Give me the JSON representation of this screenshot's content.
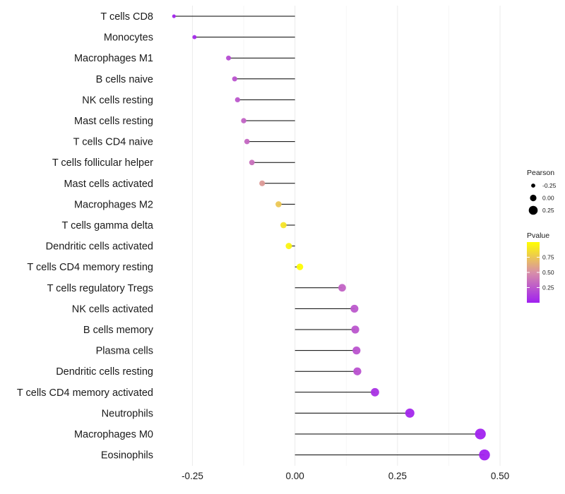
{
  "chart_data": {
    "type": "lollipop",
    "categories": [
      "T cells CD8",
      "Monocytes",
      "Macrophages M1",
      "B cells naive",
      "NK cells resting",
      "Mast cells resting",
      "T cells CD4 naive",
      "T cells follicular helper",
      "Mast cells activated",
      "Macrophages M2",
      "T cells gamma delta",
      "Dendritic cells activated",
      "T cells CD4 memory resting",
      "T cells regulatory  Tregs ",
      "NK cells activated",
      "B cells memory",
      "Plasma cells",
      "Dendritic cells resting",
      "T cells CD4 memory activated",
      "Neutrophils",
      "Macrophages M0",
      "Eosinophils"
    ],
    "values": [
      -0.295,
      -0.245,
      -0.162,
      -0.147,
      -0.14,
      -0.125,
      -0.117,
      -0.105,
      -0.08,
      -0.04,
      -0.028,
      -0.015,
      0.012,
      0.115,
      0.145,
      0.147,
      0.15,
      0.152,
      0.195,
      0.28,
      0.452,
      0.462
    ],
    "pvalues": [
      0.02,
      0.04,
      0.2,
      0.23,
      0.25,
      0.3,
      0.32,
      0.36,
      0.55,
      0.75,
      0.88,
      0.95,
      0.99,
      0.3,
      0.25,
      0.24,
      0.23,
      0.22,
      0.08,
      0.03,
      0.01,
      0.005
    ],
    "xlim": [
      -0.33,
      0.555
    ],
    "xticks": [
      "-0.25",
      "0.00",
      "0.25",
      "0.50"
    ],
    "xtick_values": [
      -0.25,
      0,
      0.25,
      0.5
    ],
    "title": "",
    "xlabel": "",
    "ylabel": "",
    "grid": true,
    "legend_placement": "right",
    "size_legend": {
      "title": "Pearson",
      "labels": [
        "-0.25",
        "0.00",
        "0.25"
      ],
      "values": [
        -0.25,
        0,
        0.25
      ]
    },
    "color_legend": {
      "title": "Pvalue",
      "labels": [
        "0.75",
        "0.50",
        "0.25"
      ],
      "values": [
        0.75,
        0.5,
        0.25
      ],
      "range": [
        0,
        1
      ],
      "low_color": "#a020f0",
      "mid_color": "#d88fa8",
      "high_color": "#ffff00"
    }
  }
}
